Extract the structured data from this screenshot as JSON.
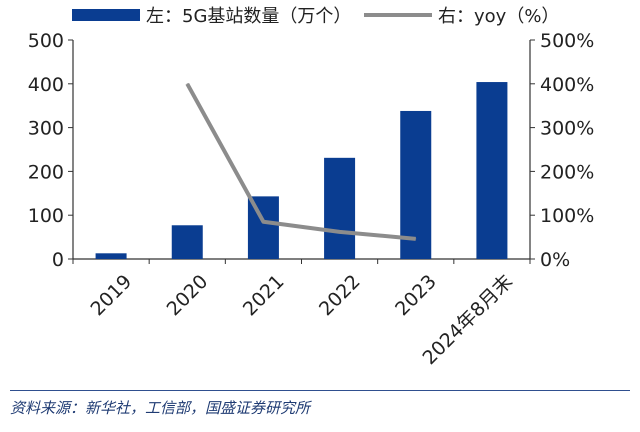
{
  "chart_data": {
    "type": "bar",
    "categories": [
      "2019",
      "2020",
      "2021",
      "2022",
      "2023",
      "2024年8月末"
    ],
    "series": [
      {
        "name": "左：5G基站数量（万个）",
        "type": "bar",
        "axis": "left",
        "values": [
          13,
          77,
          143,
          231,
          338,
          404
        ]
      },
      {
        "name": "右：yoy（%）",
        "type": "line",
        "axis": "right",
        "values": [
          null,
          400,
          85,
          62,
          46,
          null
        ]
      }
    ],
    "ylim_left": [
      0,
      500
    ],
    "yticks_left": [
      "0",
      "100",
      "200",
      "300",
      "400",
      "500"
    ],
    "ylim_right": [
      0,
      500
    ],
    "yticks_right": [
      "0%",
      "100%",
      "200%",
      "300%",
      "400%",
      "500%"
    ],
    "legend_position": "top",
    "grid": false,
    "colors": {
      "bar": "#0a3d91",
      "line": "#8c8c8c",
      "axis": "#333333"
    }
  },
  "source_text": "资料来源：新华社，工信部，国盛证券研究所"
}
